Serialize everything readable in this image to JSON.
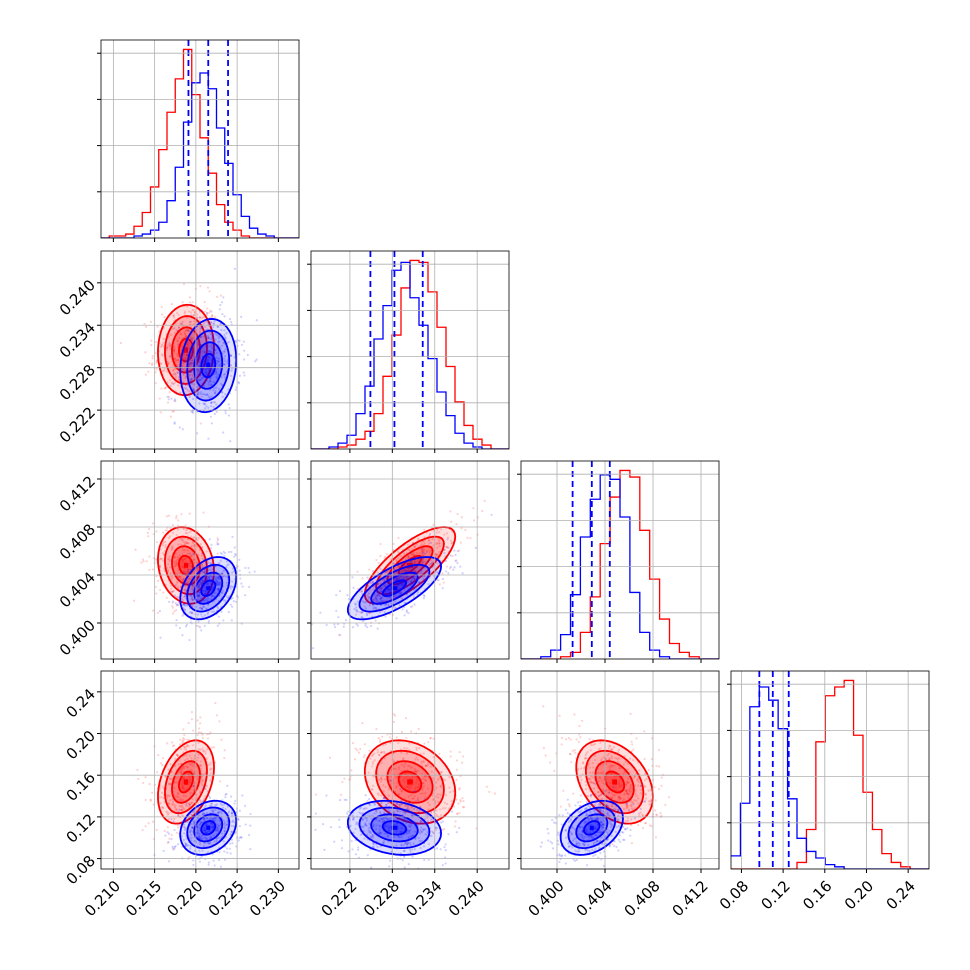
{
  "chart_data": {
    "type": "corner",
    "grid": true,
    "series": [
      {
        "name": "",
        "color": "#ff0000"
      },
      {
        "name": "",
        "color": "#0000ff"
      }
    ],
    "parameters": [
      {
        "index": 0,
        "xlim": [
          0.2085,
          0.2325
        ],
        "ticks": [
          0.21,
          0.215,
          0.22,
          0.225,
          0.23
        ],
        "tick_labels": [
          "0.210",
          "0.215",
          "0.220",
          "0.225",
          "0.230"
        ]
      },
      {
        "index": 1,
        "xlim": [
          0.2165,
          0.2445
        ],
        "ticks": [
          0.222,
          0.228,
          0.234,
          0.24
        ],
        "tick_labels": [
          "0.222",
          "0.228",
          "0.234",
          "0.240"
        ]
      },
      {
        "index": 2,
        "xlim": [
          0.397,
          0.4135
        ],
        "ticks": [
          0.4,
          0.404,
          0.408,
          0.412
        ],
        "tick_labels": [
          "0.400",
          "0.404",
          "0.408",
          "0.412"
        ]
      },
      {
        "index": 3,
        "xlim": [
          0.07,
          0.26
        ],
        "ticks": [
          0.08,
          0.12,
          0.16,
          0.2,
          0.24
        ],
        "tick_labels": [
          "0.08",
          "0.12",
          "0.16",
          "0.20",
          "0.24"
        ]
      }
    ],
    "histograms": [
      {
        "param": 0,
        "bin_edges": [
          0.2085,
          0.2325
        ],
        "red": [
          0,
          1,
          1,
          2,
          6,
          13,
          26,
          45,
          64,
          81,
          96,
          73,
          51,
          33,
          17,
          8,
          4,
          1,
          0,
          0,
          0,
          0,
          0,
          0
        ],
        "blue": [
          0,
          0,
          0,
          0,
          1,
          2,
          4,
          8,
          19,
          36,
          59,
          79,
          84,
          76,
          56,
          38,
          22,
          11,
          5,
          2,
          1,
          0,
          0,
          0
        ],
        "blue_quantiles": [
          0.2191,
          0.2215,
          0.2239
        ]
      },
      {
        "param": 1,
        "bin_edges": [
          0.2165,
          0.2445
        ],
        "red": [
          0,
          0,
          0,
          1,
          2,
          5,
          9,
          18,
          37,
          58,
          82,
          96,
          95,
          80,
          62,
          42,
          24,
          12,
          5,
          2,
          0,
          0
        ],
        "blue": [
          0,
          0,
          1,
          3,
          7,
          18,
          32,
          56,
          73,
          91,
          95,
          77,
          63,
          46,
          29,
          17,
          8,
          3,
          1,
          0,
          0,
          0
        ],
        "blue_quantiles": [
          0.2249,
          0.2283,
          0.2323
        ]
      },
      {
        "param": 2,
        "bin_edges": [
          0.397,
          0.4135
        ],
        "red": [
          0,
          0,
          0,
          0,
          1,
          3,
          12,
          28,
          52,
          73,
          85,
          82,
          58,
          36,
          18,
          7,
          3,
          1,
          0,
          0
        ],
        "blue": [
          0,
          0,
          1,
          4,
          11,
          29,
          55,
          72,
          83,
          81,
          64,
          30,
          12,
          4,
          1,
          0,
          0,
          0,
          0,
          0
        ],
        "blue_quantiles": [
          0.4013,
          0.4029,
          0.4044
        ]
      },
      {
        "param": 3,
        "bin_edges": [
          0.07,
          0.26
        ],
        "red": [
          0,
          0,
          0,
          0,
          0,
          0,
          0,
          3,
          18,
          58,
          79,
          83,
          86,
          61,
          35,
          18,
          7,
          3,
          1,
          0,
          0
        ],
        "blue": [
          6,
          30,
          74,
          83,
          77,
          64,
          32,
          14,
          8,
          5,
          2,
          1,
          0,
          0,
          0,
          0,
          0,
          0,
          0,
          0,
          0
        ],
        "blue_quantiles": [
          0.0972,
          0.1101,
          0.1254
        ]
      }
    ],
    "pairs": [
      {
        "x_param": 0,
        "y_param": 1,
        "red": {
          "mean": [
            0.2188,
            0.2305
          ],
          "sd": [
            0.0017,
            0.0032
          ],
          "rho": 0.05
        },
        "blue": {
          "mean": [
            0.2215,
            0.2283
          ],
          "sd": [
            0.0017,
            0.0033
          ],
          "rho": 0.12
        }
      },
      {
        "x_param": 0,
        "y_param": 2,
        "red": {
          "mean": [
            0.2188,
            0.4048
          ],
          "sd": [
            0.0017,
            0.0016
          ],
          "rho": -0.15
        },
        "blue": {
          "mean": [
            0.2215,
            0.4029
          ],
          "sd": [
            0.0017,
            0.0013
          ],
          "rho": 0.35
        }
      },
      {
        "x_param": 1,
        "y_param": 2,
        "red": {
          "mean": [
            0.2305,
            0.4048
          ],
          "sd": [
            0.0032,
            0.0016
          ],
          "rho": 0.75
        },
        "blue": {
          "mean": [
            0.2283,
            0.4029
          ],
          "sd": [
            0.0033,
            0.0013
          ],
          "rho": 0.7
        }
      },
      {
        "x_param": 0,
        "y_param": 3,
        "red": {
          "mean": [
            0.2188,
            0.1535
          ],
          "sd": [
            0.0017,
            0.02
          ],
          "rho": 0.35
        },
        "blue": {
          "mean": [
            0.2215,
            0.1095
          ],
          "sd": [
            0.0017,
            0.013
          ],
          "rho": 0.25
        }
      },
      {
        "x_param": 1,
        "y_param": 3,
        "red": {
          "mean": [
            0.2305,
            0.1535
          ],
          "sd": [
            0.0032,
            0.02
          ],
          "rho": -0.25
        },
        "blue": {
          "mean": [
            0.2283,
            0.1095
          ],
          "sd": [
            0.0033,
            0.013
          ],
          "rho": -0.2
        }
      },
      {
        "x_param": 2,
        "y_param": 3,
        "red": {
          "mean": [
            0.4048,
            0.1535
          ],
          "sd": [
            0.0016,
            0.02
          ],
          "rho": -0.35
        },
        "blue": {
          "mean": [
            0.4029,
            0.1095
          ],
          "sd": [
            0.0013,
            0.013
          ],
          "rho": 0.35
        }
      }
    ]
  }
}
